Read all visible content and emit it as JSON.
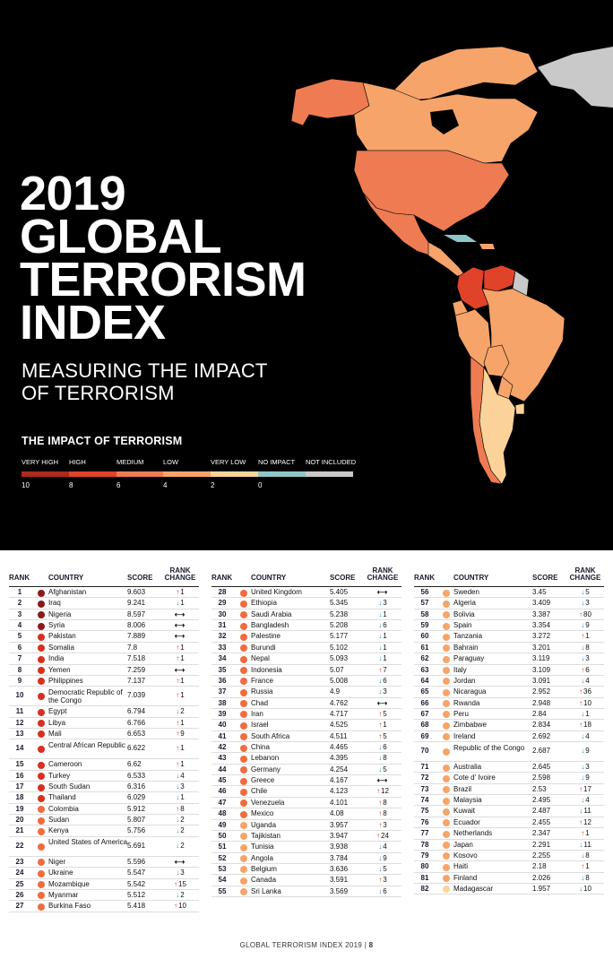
{
  "title_lines": [
    "2019",
    "GLOBAL",
    "TERRORISM",
    "INDEX"
  ],
  "subtitle_lines": [
    "MEASURING THE IMPACT",
    "OF TERRORISM"
  ],
  "legend": {
    "title": "THE IMPACT OF TERRORISM",
    "categories": [
      {
        "label": "VERY HIGH",
        "color": "#b1281c"
      },
      {
        "label": "HIGH",
        "color": "#e0432a"
      },
      {
        "label": "MEDIUM",
        "color": "#ef7b52"
      },
      {
        "label": "LOW",
        "color": "#f6a46a"
      },
      {
        "label": "VERY LOW",
        "color": "#fbd39a"
      },
      {
        "label": "NO IMPACT",
        "color": "#8fc7c9"
      },
      {
        "label": "NOT INCLUDED",
        "color": "#c9c9c9"
      }
    ],
    "ticks": [
      "10",
      "8",
      "6",
      "4",
      "2",
      "0"
    ]
  },
  "table_headers": {
    "rank": "RANK",
    "country": "COUNTRY",
    "score": "SCORE",
    "rank_change_1": "RANK",
    "rank_change_2": "CHANGE"
  },
  "rankings": [
    {
      "rank": "1",
      "country": "Afghanistan",
      "score": "9.603",
      "change": "up",
      "change_value": "1",
      "color": "#8b1a1a"
    },
    {
      "rank": "2",
      "country": "Iraq",
      "score": "9.241",
      "change": "down",
      "change_value": "1",
      "color": "#8b1a1a"
    },
    {
      "rank": "3",
      "country": "Nigeria",
      "score": "8.597",
      "change": "same",
      "change_value": "",
      "color": "#8b1a1a"
    },
    {
      "rank": "4",
      "country": "Syria",
      "score": "8.006",
      "change": "same",
      "change_value": "",
      "color": "#8b1a1a"
    },
    {
      "rank": "5",
      "country": "Pakistan",
      "score": "7.889",
      "change": "same",
      "change_value": "",
      "color": "#d7301f"
    },
    {
      "rank": "6",
      "country": "Somalia",
      "score": "7.8",
      "change": "up",
      "change_value": "1",
      "color": "#d7301f"
    },
    {
      "rank": "7",
      "country": "India",
      "score": "7.518",
      "change": "up",
      "change_value": "1",
      "color": "#d7301f"
    },
    {
      "rank": "8",
      "country": "Yemen",
      "score": "7.259",
      "change": "same",
      "change_value": "",
      "color": "#d7301f"
    },
    {
      "rank": "9",
      "country": "Philippines",
      "score": "7.137",
      "change": "up",
      "change_value": "1",
      "color": "#d7301f"
    },
    {
      "rank": "10",
      "country": "Democratic Republic of the Congo",
      "score": "7.039",
      "change": "up",
      "change_value": "1",
      "color": "#d7301f"
    },
    {
      "rank": "11",
      "country": "Egypt",
      "score": "6.794",
      "change": "down",
      "change_value": "2",
      "color": "#d7301f"
    },
    {
      "rank": "12",
      "country": "Libya",
      "score": "6.766",
      "change": "up",
      "change_value": "1",
      "color": "#d7301f"
    },
    {
      "rank": "13",
      "country": "Mali",
      "score": "6.653",
      "change": "up",
      "change_value": "9",
      "color": "#d7301f"
    },
    {
      "rank": "14",
      "country": "Central African Republic",
      "score": "6.622",
      "change": "up",
      "change_value": "1",
      "color": "#d7301f"
    },
    {
      "rank": "15",
      "country": "Cameroon",
      "score": "6.62",
      "change": "up",
      "change_value": "1",
      "color": "#d7301f"
    },
    {
      "rank": "16",
      "country": "Turkey",
      "score": "6.533",
      "change": "down",
      "change_value": "4",
      "color": "#d7301f"
    },
    {
      "rank": "17",
      "country": "South Sudan",
      "score": "6.316",
      "change": "down",
      "change_value": "3",
      "color": "#d7301f"
    },
    {
      "rank": "18",
      "country": "Thailand",
      "score": "6.029",
      "change": "down",
      "change_value": "1",
      "color": "#d7301f"
    },
    {
      "rank": "19",
      "country": "Colombia",
      "score": "5.912",
      "change": "up",
      "change_value": "8",
      "color": "#ef6c3f"
    },
    {
      "rank": "20",
      "country": "Sudan",
      "score": "5.807",
      "change": "down",
      "change_value": "2",
      "color": "#ef6c3f"
    },
    {
      "rank": "21",
      "country": "Kenya",
      "score": "5.756",
      "change": "down",
      "change_value": "2",
      "color": "#ef6c3f"
    },
    {
      "rank": "22",
      "country": "United States of America",
      "score": "5.691",
      "change": "down",
      "change_value": "2",
      "color": "#ef6c3f"
    },
    {
      "rank": "23",
      "country": "Niger",
      "score": "5.596",
      "change": "same",
      "change_value": "",
      "color": "#ef6c3f"
    },
    {
      "rank": "24",
      "country": "Ukraine",
      "score": "5.547",
      "change": "down",
      "change_value": "3",
      "color": "#ef6c3f"
    },
    {
      "rank": "25",
      "country": "Mozambique",
      "score": "5.542",
      "change": "up",
      "change_value": "15",
      "color": "#ef6c3f"
    },
    {
      "rank": "26",
      "country": "Myanmar",
      "score": "5.512",
      "change": "down",
      "change_value": "2",
      "color": "#ef6c3f"
    },
    {
      "rank": "27",
      "country": "Burkina Faso",
      "score": "5.418",
      "change": "up",
      "change_value": "10",
      "color": "#ef6c3f"
    },
    {
      "rank": "28",
      "country": "United Kingdom",
      "score": "5.405",
      "change": "same",
      "change_value": "",
      "color": "#ef6c3f"
    },
    {
      "rank": "29",
      "country": "Ethiopia",
      "score": "5.345",
      "change": "down",
      "change_value": "3",
      "color": "#ef6c3f"
    },
    {
      "rank": "30",
      "country": "Saudi Arabia",
      "score": "5.238",
      "change": "down",
      "change_value": "1",
      "color": "#ef6c3f"
    },
    {
      "rank": "31",
      "country": "Bangladesh",
      "score": "5.208",
      "change": "down",
      "change_value": "6",
      "color": "#ef6c3f"
    },
    {
      "rank": "32",
      "country": "Palestine",
      "score": "5.177",
      "change": "down",
      "change_value": "1",
      "color": "#ef6c3f"
    },
    {
      "rank": "33",
      "country": "Burundi",
      "score": "5.102",
      "change": "down",
      "change_value": "1",
      "color": "#ef6c3f"
    },
    {
      "rank": "34",
      "country": "Nepal",
      "score": "5.093",
      "change": "down",
      "change_value": "1",
      "color": "#ef6c3f"
    },
    {
      "rank": "35",
      "country": "Indonesia",
      "score": "5.07",
      "change": "up",
      "change_value": "7",
      "color": "#ef6c3f"
    },
    {
      "rank": "36",
      "country": "France",
      "score": "5.008",
      "change": "down",
      "change_value": "6",
      "color": "#ef6c3f"
    },
    {
      "rank": "37",
      "country": "Russia",
      "score": "4.9",
      "change": "down",
      "change_value": "3",
      "color": "#ef6c3f"
    },
    {
      "rank": "38",
      "country": "Chad",
      "score": "4.762",
      "change": "same",
      "change_value": "",
      "color": "#ef6c3f"
    },
    {
      "rank": "39",
      "country": "Iran",
      "score": "4.717",
      "change": "up",
      "change_value": "5",
      "color": "#ef6c3f"
    },
    {
      "rank": "40",
      "country": "Israel",
      "score": "4.525",
      "change": "up",
      "change_value": "1",
      "color": "#ef6c3f"
    },
    {
      "rank": "41",
      "country": "South Africa",
      "score": "4.511",
      "change": "up",
      "change_value": "5",
      "color": "#ef6c3f"
    },
    {
      "rank": "42",
      "country": "China",
      "score": "4.465",
      "change": "down",
      "change_value": "6",
      "color": "#ef6c3f"
    },
    {
      "rank": "43",
      "country": "Lebanon",
      "score": "4.395",
      "change": "down",
      "change_value": "8",
      "color": "#ef6c3f"
    },
    {
      "rank": "44",
      "country": "Germany",
      "score": "4.254",
      "change": "down",
      "change_value": "5",
      "color": "#ef6c3f"
    },
    {
      "rank": "45",
      "country": "Greece",
      "score": "4.167",
      "change": "same",
      "change_value": "",
      "color": "#ef6c3f"
    },
    {
      "rank": "46",
      "country": "Chile",
      "score": "4.123",
      "change": "up",
      "change_value": "12",
      "color": "#ef6c3f"
    },
    {
      "rank": "47",
      "country": "Venezuela",
      "score": "4.101",
      "change": "up",
      "change_value": "8",
      "color": "#ef6c3f"
    },
    {
      "rank": "48",
      "country": "Mexico",
      "score": "4.08",
      "change": "up",
      "change_value": "8",
      "color": "#ef6c3f"
    },
    {
      "rank": "49",
      "country": "Uganda",
      "score": "3.957",
      "change": "up",
      "change_value": "3",
      "color": "#f6a46a"
    },
    {
      "rank": "50",
      "country": "Tajikistan",
      "score": "3.947",
      "change": "up",
      "change_value": "24",
      "color": "#f6a46a"
    },
    {
      "rank": "51",
      "country": "Tunisia",
      "score": "3.938",
      "change": "down",
      "change_value": "4",
      "color": "#f6a46a"
    },
    {
      "rank": "52",
      "country": "Angola",
      "score": "3.784",
      "change": "down",
      "change_value": "9",
      "color": "#f6a46a"
    },
    {
      "rank": "53",
      "country": "Belgium",
      "score": "3.636",
      "change": "down",
      "change_value": "5",
      "color": "#f6a46a"
    },
    {
      "rank": "54",
      "country": "Canada",
      "score": "3.591",
      "change": "up",
      "change_value": "3",
      "color": "#f6a46a"
    },
    {
      "rank": "55",
      "country": "Sri Lanka",
      "score": "3.569",
      "change": "down",
      "change_value": "6",
      "color": "#f6a46a"
    },
    {
      "rank": "56",
      "country": "Sweden",
      "score": "3.45",
      "change": "down",
      "change_value": "5",
      "color": "#f6a46a"
    },
    {
      "rank": "57",
      "country": "Algeria",
      "score": "3.409",
      "change": "down",
      "change_value": "3",
      "color": "#f6a46a"
    },
    {
      "rank": "58",
      "country": "Bolivia",
      "score": "3.387",
      "change": "up",
      "change_value": "80",
      "color": "#f6a46a"
    },
    {
      "rank": "59",
      "country": "Spain",
      "score": "3.354",
      "change": "down",
      "change_value": "9",
      "color": "#f6a46a"
    },
    {
      "rank": "60",
      "country": "Tanzania",
      "score": "3.272",
      "change": "up",
      "change_value": "1",
      "color": "#f6a46a"
    },
    {
      "rank": "61",
      "country": "Bahrain",
      "score": "3.201",
      "change": "down",
      "change_value": "8",
      "color": "#f6a46a"
    },
    {
      "rank": "62",
      "country": "Paraguay",
      "score": "3.119",
      "change": "down",
      "change_value": "3",
      "color": "#f6a46a"
    },
    {
      "rank": "63",
      "country": "Italy",
      "score": "3.109",
      "change": "up",
      "change_value": "6",
      "color": "#f6a46a"
    },
    {
      "rank": "64",
      "country": "Jordan",
      "score": "3.091",
      "change": "down",
      "change_value": "4",
      "color": "#f6a46a"
    },
    {
      "rank": "65",
      "country": "Nicaragua",
      "score": "2.952",
      "change": "up",
      "change_value": "36",
      "color": "#f6a46a"
    },
    {
      "rank": "66",
      "country": "Rwanda",
      "score": "2.948",
      "change": "up",
      "change_value": "10",
      "color": "#f6a46a"
    },
    {
      "rank": "67",
      "country": "Peru",
      "score": "2.84",
      "change": "down",
      "change_value": "1",
      "color": "#f6a46a"
    },
    {
      "rank": "68",
      "country": "Zimbabwe",
      "score": "2.834",
      "change": "up",
      "change_value": "18",
      "color": "#f6a46a"
    },
    {
      "rank": "69",
      "country": "Ireland",
      "score": "2.692",
      "change": "down",
      "change_value": "4",
      "color": "#f6a46a"
    },
    {
      "rank": "70",
      "country": "Republic of the Congo",
      "score": "2.687",
      "change": "down",
      "change_value": "9",
      "color": "#f6a46a"
    },
    {
      "rank": "71",
      "country": "Australia",
      "score": "2.645",
      "change": "down",
      "change_value": "3",
      "color": "#f6a46a"
    },
    {
      "rank": "72",
      "country": "Cote d' Ivoire",
      "score": "2.598",
      "change": "down",
      "change_value": "9",
      "color": "#f6a46a"
    },
    {
      "rank": "73",
      "country": "Brazil",
      "score": "2.53",
      "change": "up",
      "change_value": "17",
      "color": "#f6a46a"
    },
    {
      "rank": "74",
      "country": "Malaysia",
      "score": "2.495",
      "change": "down",
      "change_value": "4",
      "color": "#f6a46a"
    },
    {
      "rank": "75",
      "country": "Kuwait",
      "score": "2.487",
      "change": "down",
      "change_value": "11",
      "color": "#f6a46a"
    },
    {
      "rank": "76",
      "country": "Ecuador",
      "score": "2.455",
      "change": "up",
      "change_value": "12",
      "color": "#f6a46a"
    },
    {
      "rank": "77",
      "country": "Netherlands",
      "score": "2.347",
      "change": "up",
      "change_value": "1",
      "color": "#f6a46a"
    },
    {
      "rank": "78",
      "country": "Japan",
      "score": "2.291",
      "change": "down",
      "change_value": "11",
      "color": "#f6a46a"
    },
    {
      "rank": "79",
      "country": "Kosovo",
      "score": "2.255",
      "change": "down",
      "change_value": "8",
      "color": "#f6a46a"
    },
    {
      "rank": "80",
      "country": "Haiti",
      "score": "2.18",
      "change": "up",
      "change_value": "1",
      "color": "#f6a46a"
    },
    {
      "rank": "81",
      "country": "Finland",
      "score": "2.026",
      "change": "down",
      "change_value": "8",
      "color": "#f6a46a"
    },
    {
      "rank": "82",
      "country": "Madagascar",
      "score": "1.957",
      "change": "down",
      "change_value": "10",
      "color": "#fbd39a"
    }
  ],
  "footer": {
    "text": "GLOBAL TERRORISM INDEX 2019",
    "separator": "|",
    "page": "8"
  }
}
